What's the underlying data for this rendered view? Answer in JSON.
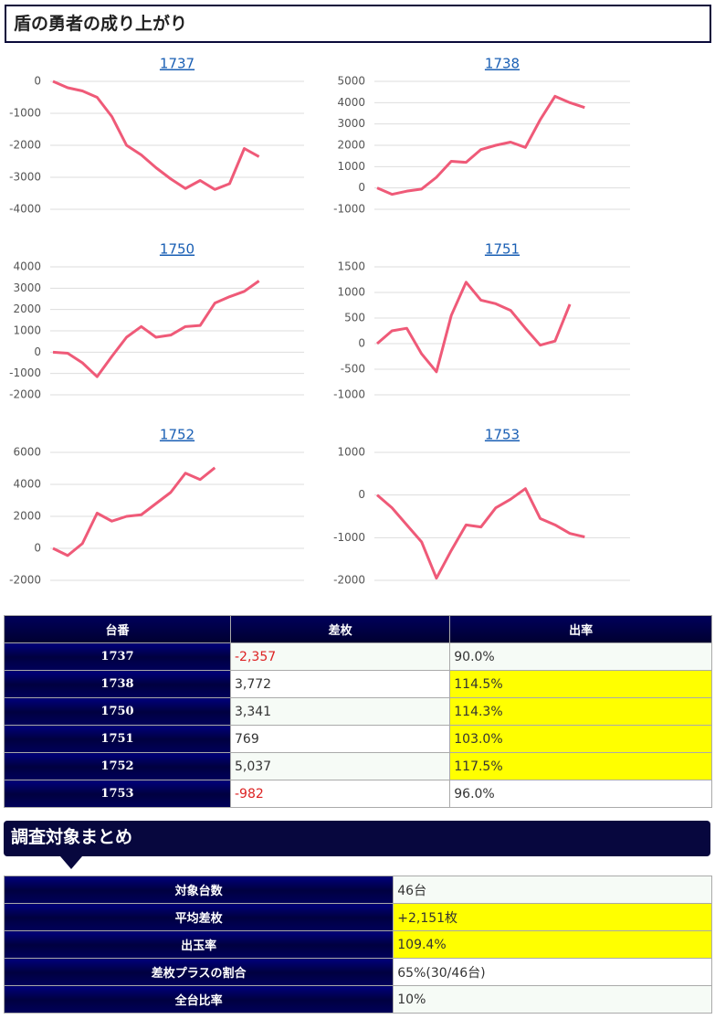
{
  "header": {
    "title": "盾の勇者の成り上がり"
  },
  "chart_data": [
    {
      "type": "line",
      "title": "1737",
      "color": "#ef5a78",
      "ylim": [
        -4000,
        0
      ],
      "yticks": [
        -4000,
        -3000,
        -2000,
        -1000,
        0
      ],
      "grid": true,
      "values": [
        0,
        -200,
        -300,
        -500,
        -1100,
        -2000,
        -2300,
        -2700,
        -3050,
        -3350,
        -3100,
        -3380,
        -3200,
        -2100,
        -2357
      ]
    },
    {
      "type": "line",
      "title": "1738",
      "color": "#ef5a78",
      "ylim": [
        -1000,
        5000
      ],
      "yticks": [
        -1000,
        0,
        1000,
        2000,
        3000,
        4000,
        5000
      ],
      "grid": true,
      "values": [
        0,
        -300,
        -150,
        -50,
        500,
        1250,
        1200,
        1800,
        2000,
        2150,
        1900,
        3200,
        4300,
        4000,
        3772
      ]
    },
    {
      "type": "line",
      "title": "1750",
      "color": "#ef5a78",
      "ylim": [
        -2000,
        4000
      ],
      "yticks": [
        -2000,
        -1000,
        0,
        1000,
        2000,
        3000,
        4000
      ],
      "grid": true,
      "values": [
        0,
        -50,
        -500,
        -1150,
        -200,
        700,
        1200,
        700,
        800,
        1200,
        1250,
        2300,
        2600,
        2850,
        3341
      ]
    },
    {
      "type": "line",
      "title": "1751",
      "color": "#ef5a78",
      "ylim": [
        -1000,
        1500
      ],
      "yticks": [
        -1000,
        -500,
        0,
        500,
        1000,
        1500
      ],
      "grid": true,
      "values": [
        0,
        250,
        300,
        -200,
        -550,
        550,
        1200,
        850,
        780,
        650,
        300,
        -30,
        50,
        769
      ]
    },
    {
      "type": "line",
      "title": "1752",
      "color": "#ef5a78",
      "ylim": [
        -2000,
        6000
      ],
      "yticks": [
        -2000,
        0,
        2000,
        4000,
        6000
      ],
      "grid": true,
      "values": [
        0,
        -450,
        300,
        2200,
        1700,
        2000,
        2100,
        2800,
        3500,
        4700,
        4300,
        5037
      ]
    },
    {
      "type": "line",
      "title": "1753",
      "color": "#ef5a78",
      "ylim": [
        -2000,
        1000
      ],
      "yticks": [
        -2000,
        -1000,
        0,
        1000
      ],
      "grid": true,
      "values": [
        0,
        -300,
        -700,
        -1100,
        -1950,
        -1300,
        -700,
        -750,
        -300,
        -100,
        150,
        -550,
        -700,
        -900,
        -982
      ]
    }
  ],
  "table": {
    "headers": [
      "台番",
      "差枚",
      "出率"
    ],
    "rows": [
      {
        "id": "1737",
        "diff": "-2,357",
        "rate": "90.0%",
        "highlight": false
      },
      {
        "id": "1738",
        "diff": "3,772",
        "rate": "114.5%",
        "highlight": true
      },
      {
        "id": "1750",
        "diff": "3,341",
        "rate": "114.3%",
        "highlight": true
      },
      {
        "id": "1751",
        "diff": "769",
        "rate": "103.0%",
        "highlight": true
      },
      {
        "id": "1752",
        "diff": "5,037",
        "rate": "117.5%",
        "highlight": true
      },
      {
        "id": "1753",
        "diff": "-982",
        "rate": "96.0%",
        "highlight": false
      }
    ]
  },
  "summary": {
    "title": "調査対象まとめ",
    "rows": [
      {
        "label": "対象台数",
        "value": "46台",
        "highlight": false
      },
      {
        "label": "平均差枚",
        "value": "+2,151枚",
        "highlight": true
      },
      {
        "label": "出玉率",
        "value": "109.4%",
        "highlight": true
      },
      {
        "label": "差枚プラスの割合",
        "value": "65%(30/46台)",
        "highlight": false
      },
      {
        "label": "全台比率",
        "value": "10%",
        "highlight": false
      }
    ]
  }
}
